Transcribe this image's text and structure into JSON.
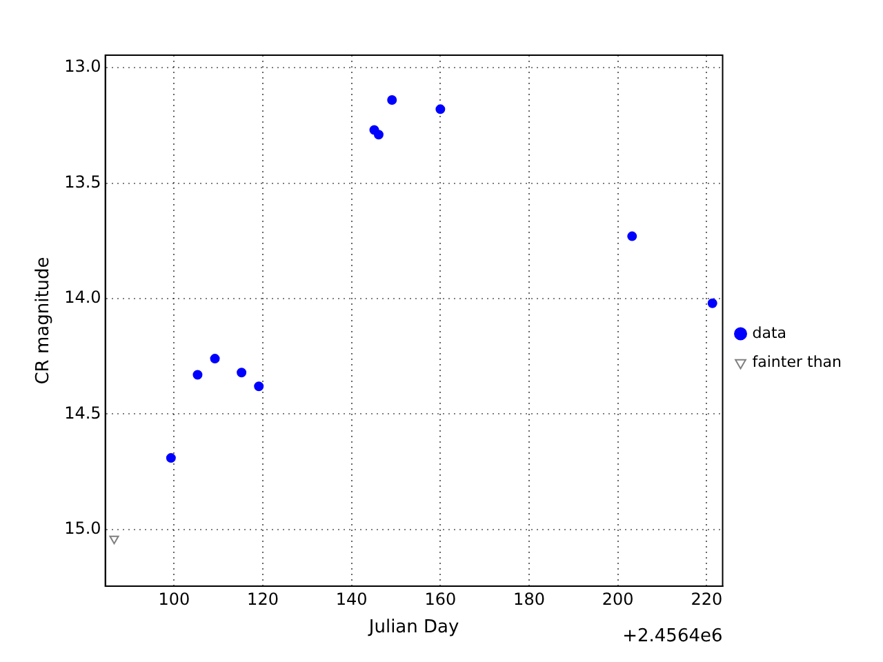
{
  "chart_data": {
    "type": "scatter",
    "xlabel": "Julian Day",
    "ylabel": "CR magnitude",
    "annotations": [
      "+2.4564e6"
    ],
    "series": [
      {
        "name": "data",
        "color": "#0000ff",
        "marker": "circle",
        "x": [
          99.3,
          105.3,
          109.2,
          115.2,
          119.1,
          145.1,
          146.1,
          149.1,
          160.0,
          203.2,
          221.3
        ],
        "values": [
          14.69,
          14.33,
          14.26,
          14.32,
          14.38,
          13.27,
          13.29,
          13.14,
          13.18,
          13.73,
          14.02
        ]
      },
      {
        "name": "fainter than",
        "color": "#808080",
        "marker": "triangle",
        "x": [
          86.5
        ],
        "values": [
          15.04
        ]
      }
    ],
    "xlim": [
      84.5,
      223.6
    ],
    "xticks": [
      100,
      120,
      140,
      160,
      180,
      200,
      220
    ],
    "ylim": [
      15.245,
      12.946
    ],
    "yticks": [
      {
        "value": 13,
        "label": "13.0"
      },
      {
        "value": 13.5,
        "label": "13.5"
      },
      {
        "value": 14,
        "label": "14.0"
      },
      {
        "value": 14.5,
        "label": "14.5"
      },
      {
        "value": 15,
        "label": "15.0"
      }
    ],
    "grid": true,
    "legend": "right"
  }
}
